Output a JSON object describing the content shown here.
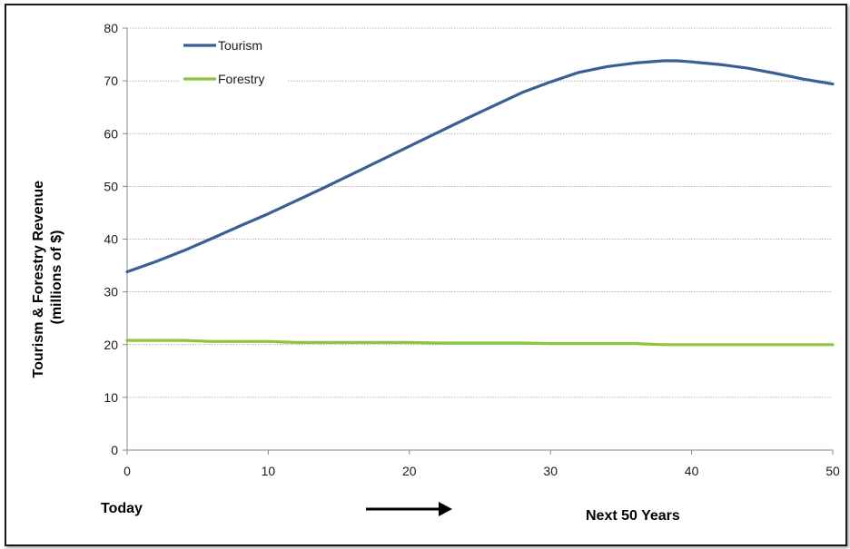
{
  "chart_data": {
    "type": "line",
    "title": "",
    "xlabel": "",
    "ylabel_lines": [
      "Tourism & Forestry Revenue",
      "(millions of $)"
    ],
    "xlim": [
      0,
      50
    ],
    "ylim": [
      0,
      80
    ],
    "x_ticks": [
      0,
      10,
      20,
      30,
      40,
      50
    ],
    "y_ticks": [
      0,
      10,
      20,
      30,
      40,
      50,
      60,
      70,
      80
    ],
    "grid": "horizontal",
    "legend_position": "top-left",
    "bottom_left_label": "Today",
    "bottom_right_label": "Next 50 Years",
    "series": [
      {
        "name": "Tourism",
        "color": "#3a5f94",
        "x": [
          0,
          2,
          4,
          6,
          8,
          10,
          12,
          14,
          16,
          18,
          20,
          22,
          24,
          26,
          28,
          30,
          32,
          34,
          36,
          38,
          39,
          40,
          42,
          44,
          46,
          48,
          50
        ],
        "y": [
          33.8,
          35.7,
          37.8,
          40.1,
          42.5,
          44.8,
          47.3,
          49.8,
          52.4,
          55.0,
          57.6,
          60.2,
          62.8,
          65.3,
          67.8,
          69.8,
          71.6,
          72.7,
          73.4,
          73.8,
          73.8,
          73.6,
          73.1,
          72.4,
          71.4,
          70.3,
          69.4
        ]
      },
      {
        "name": "Forestry",
        "color": "#8cc63f",
        "x": [
          0,
          4,
          6,
          10,
          12,
          16,
          20,
          22,
          28,
          30,
          36,
          38,
          44,
          50
        ],
        "y": [
          20.8,
          20.8,
          20.6,
          20.6,
          20.4,
          20.4,
          20.4,
          20.3,
          20.3,
          20.2,
          20.2,
          20.0,
          20.0,
          20.0
        ]
      }
    ]
  }
}
